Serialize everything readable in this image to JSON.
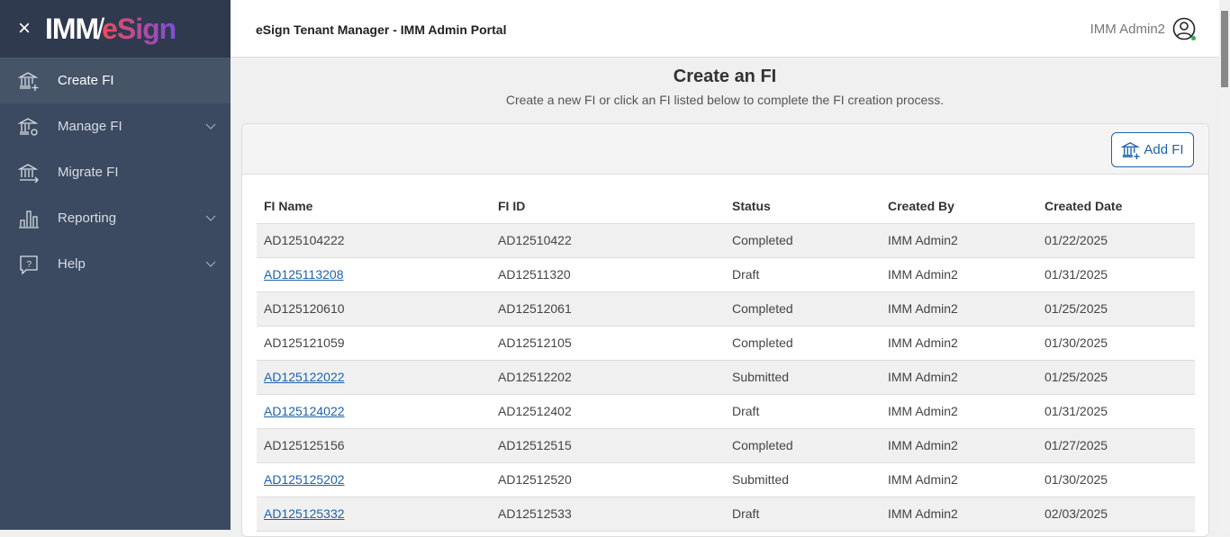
{
  "brand": {
    "close": "×",
    "logo_a": "IMM",
    "logo_b": "eSign"
  },
  "sidebar": {
    "items": [
      {
        "label": "Create FI",
        "icon": "bank-plus-icon",
        "active": true
      },
      {
        "label": "Manage FI",
        "icon": "bank-gear-icon",
        "expand": true
      },
      {
        "label": "Migrate FI",
        "icon": "bank-arrow-icon"
      },
      {
        "label": "Reporting",
        "icon": "bar-chart-icon",
        "expand": true
      },
      {
        "label": "Help",
        "icon": "help-bubble-icon",
        "expand": true
      }
    ]
  },
  "header": {
    "title": "eSign Tenant Manager - IMM Admin Portal",
    "user": "IMM Admin2"
  },
  "page": {
    "title": "Create an FI",
    "subtitle": "Create a new FI or click an FI listed below to complete the FI creation process.",
    "add_button": "Add FI"
  },
  "table": {
    "columns": [
      "FI Name",
      "FI ID",
      "Status",
      "Created By",
      "Created Date"
    ],
    "rows": [
      [
        "AD125104222",
        "AD12510422",
        "Completed",
        "IMM Admin2",
        "01/22/2025",
        false
      ],
      [
        "AD125113208",
        "AD12511320",
        "Draft",
        "IMM Admin2",
        "01/31/2025",
        true
      ],
      [
        "AD125120610",
        "AD12512061",
        "Completed",
        "IMM Admin2",
        "01/25/2025",
        false
      ],
      [
        "AD125121059",
        "AD12512105",
        "Completed",
        "IMM Admin2",
        "01/30/2025",
        false
      ],
      [
        "AD125122022",
        "AD12512202",
        "Submitted",
        "IMM Admin2",
        "01/25/2025",
        true
      ],
      [
        "AD125124022",
        "AD12512402",
        "Draft",
        "IMM Admin2",
        "01/31/2025",
        true
      ],
      [
        "AD125125156",
        "AD12512515",
        "Completed",
        "IMM Admin2",
        "01/27/2025",
        false
      ],
      [
        "AD125125202",
        "AD12512520",
        "Submitted",
        "IMM Admin2",
        "01/30/2025",
        true
      ],
      [
        "AD125125332",
        "AD12512533",
        "Draft",
        "IMM Admin2",
        "02/03/2025",
        true
      ]
    ]
  }
}
